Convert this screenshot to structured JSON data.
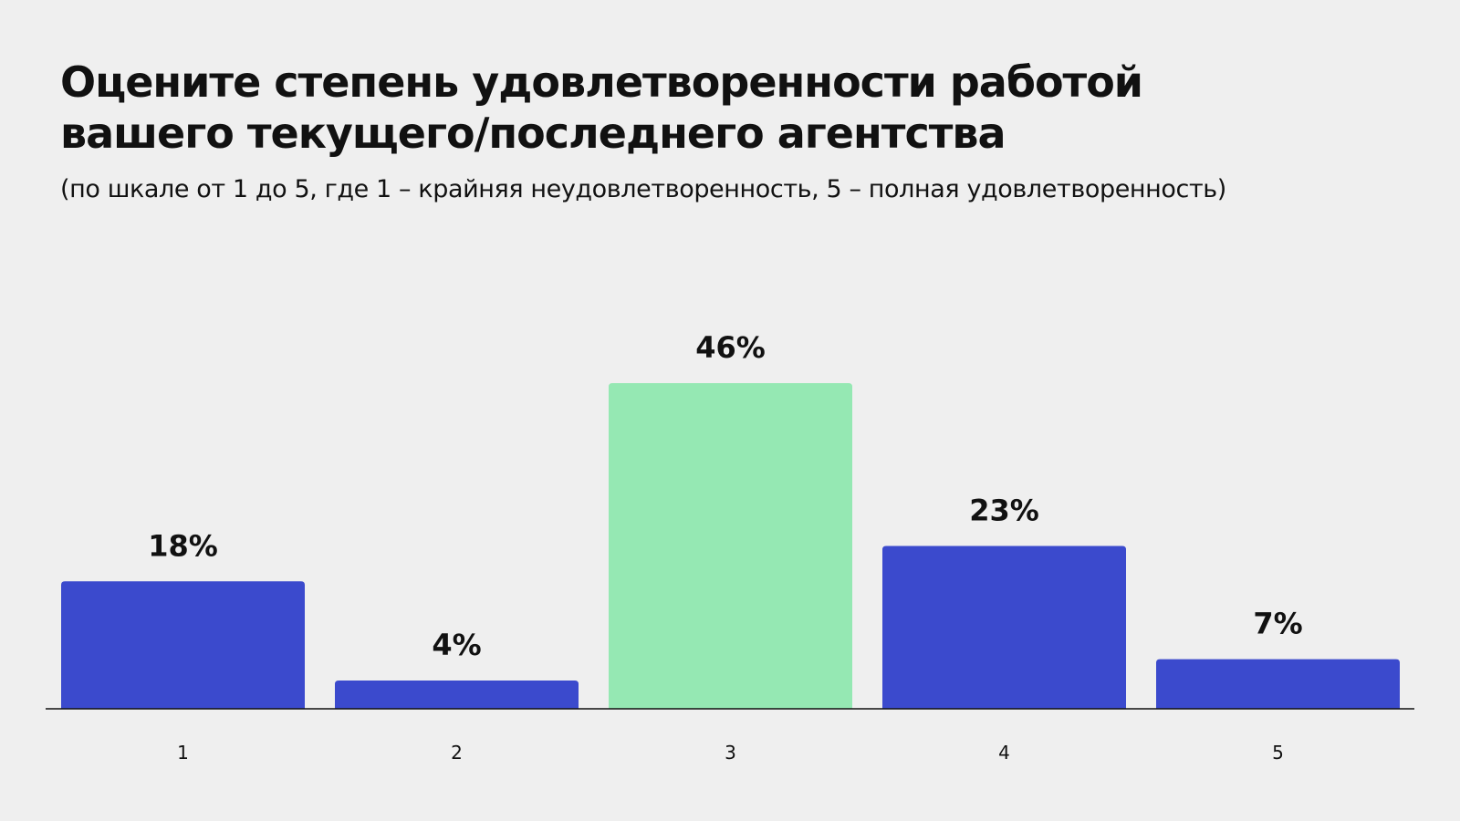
{
  "title_line1": "Оцените степень удовлетворенности работой",
  "title_line2": "вашего текущего/последнего агентства",
  "subtitle": "(по шкале от 1 до 5, где 1 – крайняя неудовлетворенность, 5 – полная удовлетворенность)",
  "colors": {
    "background": "#efefef",
    "bar": "#3b4acd",
    "bar_highlight": "#95e8b3",
    "text": "#111111",
    "axis": "#111111"
  },
  "chart_data": {
    "type": "bar",
    "title": "Оцените степень удовлетворенности работой вашего текущего/последнего агентства",
    "subtitle": "(по шкале от 1 до 5, где 1 – крайняя неудовлетворенность, 5 – полная удовлетворенность)",
    "categories": [
      "1",
      "2",
      "3",
      "4",
      "5"
    ],
    "values": [
      18,
      4,
      46,
      23,
      7
    ],
    "value_labels": [
      "18%",
      "4%",
      "46%",
      "23%",
      "7%"
    ],
    "highlighted_category": "3",
    "ylim": [
      0,
      46
    ],
    "grid": false,
    "legend": "none"
  }
}
